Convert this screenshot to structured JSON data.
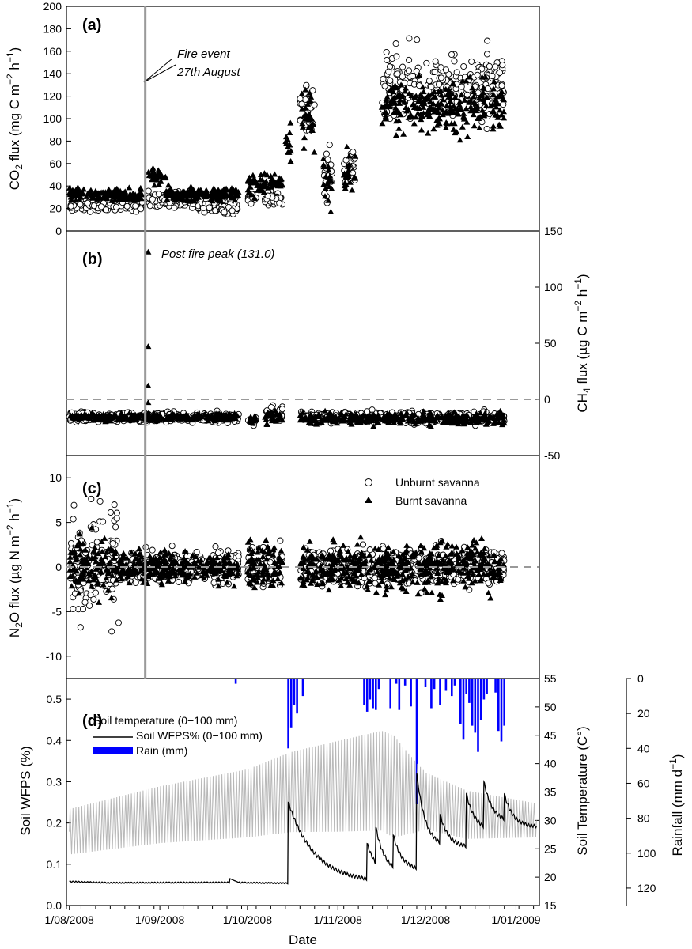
{
  "chart_data": [
    {
      "panel": "(a)",
      "type": "scatter",
      "ylabel": "CO2 flux (mg C m−2 h−1)",
      "ylim": [
        0,
        200
      ],
      "yticks": [
        0,
        20,
        40,
        60,
        80,
        100,
        120,
        140,
        160,
        180,
        200
      ],
      "annotation": [
        "Fire event",
        "27th August"
      ],
      "series": [
        {
          "name": "Unburnt savanna",
          "marker": "open-circle",
          "segments": [
            {
              "x": [
                "2008-08-01",
                "2008-08-26"
              ],
              "center": 23,
              "spread": 5
            },
            {
              "x": [
                "2008-08-28",
                "2008-09-14"
              ],
              "center": 28,
              "spread": 6
            },
            {
              "x": [
                "2008-09-14",
                "2008-09-28"
              ],
              "center": 22,
              "spread": 6
            },
            {
              "x": [
                "2008-10-01",
                "2008-10-04"
              ],
              "center": 30,
              "spread": 4
            },
            {
              "x": [
                "2008-10-07",
                "2008-10-13"
              ],
              "center": 29,
              "spread": 5
            },
            {
              "x": [
                "2008-10-19",
                "2008-10-24"
              ],
              "center": 105,
              "spread": 20
            },
            {
              "x": [
                "2008-10-27",
                "2008-10-30"
              ],
              "center": 55,
              "spread": 20
            },
            {
              "x": [
                "2008-11-03",
                "2008-11-07"
              ],
              "center": 55,
              "spread": 18
            },
            {
              "x": [
                "2008-11-16",
                "2008-11-29"
              ],
              "center": 132,
              "spread": 26
            },
            {
              "x": [
                "2008-12-01",
                "2008-12-12"
              ],
              "center": 128,
              "spread": 22
            },
            {
              "x": [
                "2008-12-13",
                "2008-12-28"
              ],
              "center": 130,
              "spread": 25
            }
          ]
        },
        {
          "name": "Burnt savanna",
          "marker": "filled-triangle",
          "segments": [
            {
              "x": [
                "2008-08-01",
                "2008-08-26"
              ],
              "center": 32,
              "spread": 5
            },
            {
              "x": [
                "2008-08-28",
                "2008-09-03"
              ],
              "center": 48,
              "spread": 6
            },
            {
              "x": [
                "2008-09-03",
                "2008-09-28"
              ],
              "center": 32,
              "spread": 6
            },
            {
              "x": [
                "2008-10-01",
                "2008-10-13"
              ],
              "center": 42,
              "spread": 8
            },
            {
              "x": [
                "2008-10-14",
                "2008-10-16"
              ],
              "center": 80,
              "spread": 30
            },
            {
              "x": [
                "2008-10-19",
                "2008-10-24"
              ],
              "center": 100,
              "spread": 22
            },
            {
              "x": [
                "2008-10-27",
                "2008-10-30"
              ],
              "center": 45,
              "spread": 20
            },
            {
              "x": [
                "2008-11-03",
                "2008-11-07"
              ],
              "center": 50,
              "spread": 18
            },
            {
              "x": [
                "2008-11-16",
                "2008-12-28"
              ],
              "center": 110,
              "spread": 20
            }
          ]
        }
      ]
    },
    {
      "panel": "(b)",
      "type": "scatter",
      "ylabel": "CH4 flux (µg C m−2 h−1)",
      "ylim": [
        -50,
        150
      ],
      "yticks": [
        -50,
        0,
        50,
        100,
        150
      ],
      "reference_line": 0,
      "annotation": "Post fire peak (131.0)",
      "peak_points": [
        {
          "x": "2008-08-28",
          "y": 131.0
        },
        {
          "x": "2008-08-28",
          "y": 47
        },
        {
          "x": "2008-08-28",
          "y": 12
        },
        {
          "x": "2008-08-28",
          "y": -3
        }
      ],
      "series": [
        {
          "name": "Unburnt savanna",
          "marker": "open-circle",
          "segments": [
            {
              "x": [
                "2008-08-01",
                "2008-09-28"
              ],
              "center": -16,
              "spread": 4
            },
            {
              "x": [
                "2008-10-01",
                "2008-10-04"
              ],
              "center": -19,
              "spread": 3
            },
            {
              "x": [
                "2008-10-07",
                "2008-10-13"
              ],
              "center": -12,
              "spread": 6
            },
            {
              "x": [
                "2008-10-19",
                "2008-12-28"
              ],
              "center": -16,
              "spread": 5
            }
          ]
        },
        {
          "name": "Burnt savanna",
          "marker": "filled-triangle",
          "segments": [
            {
              "x": [
                "2008-08-01",
                "2008-09-28"
              ],
              "center": -16,
              "spread": 3
            },
            {
              "x": [
                "2008-10-01",
                "2008-10-04"
              ],
              "center": -18,
              "spread": 3
            },
            {
              "x": [
                "2008-10-07",
                "2008-10-13"
              ],
              "center": -15,
              "spread": 6
            },
            {
              "x": [
                "2008-10-19",
                "2008-12-28"
              ],
              "center": -17,
              "spread": 5
            }
          ]
        }
      ]
    },
    {
      "panel": "(c)",
      "type": "scatter",
      "ylabel": "N2O flux (µg N m−2 h−1)",
      "ylim": [
        -12.5,
        12.5
      ],
      "yticks": [
        -10,
        -5,
        0,
        5,
        10
      ],
      "reference_line": 0,
      "legend": {
        "position": "top-right",
        "entries": [
          "Unburnt savanna",
          "Burnt savanna"
        ]
      },
      "series": [
        {
          "name": "Unburnt savanna",
          "marker": "open-circle",
          "segments": [
            {
              "x": [
                "2008-08-01",
                "2008-08-18"
              ],
              "center": 0,
              "spread": 6
            },
            {
              "x": [
                "2008-08-18",
                "2008-09-28"
              ],
              "center": 0,
              "spread": 1.5
            },
            {
              "x": [
                "2008-10-01",
                "2008-10-13"
              ],
              "center": 0,
              "spread": 2
            },
            {
              "x": [
                "2008-10-19",
                "2008-12-28"
              ],
              "center": 0,
              "spread": 1.8
            }
          ]
        },
        {
          "name": "Burnt savanna",
          "marker": "filled-triangle",
          "segments": [
            {
              "x": [
                "2008-08-01",
                "2008-08-18"
              ],
              "center": 0,
              "spread": 3
            },
            {
              "x": [
                "2008-08-18",
                "2008-09-28"
              ],
              "center": 0,
              "spread": 1.5
            },
            {
              "x": [
                "2008-10-01",
                "2008-10-13"
              ],
              "center": 0,
              "spread": 2.5
            },
            {
              "x": [
                "2008-10-19",
                "2008-12-28"
              ],
              "center": 0,
              "spread": 2.2
            }
          ]
        }
      ]
    },
    {
      "panel": "(d)",
      "type": "line",
      "xlabel": "Date",
      "ylabel_left": "Soil WFPS (%)",
      "ylabel_right1": "Soil Temperature (C°)",
      "ylabel_right2": "Rainfall (mm d−1)",
      "ylim_left": [
        0,
        0.55
      ],
      "yticks_left": [
        0.0,
        0.1,
        0.2,
        0.3,
        0.4,
        0.5
      ],
      "ylim_right1": [
        15,
        55
      ],
      "yticks_right1": [
        15,
        20,
        25,
        30,
        35,
        40,
        45,
        50,
        55
      ],
      "ylim_right2": [
        0,
        130
      ],
      "yticks_right2": [
        0,
        20,
        40,
        60,
        80,
        100,
        120
      ],
      "legend": {
        "position": "top-left",
        "entries": [
          "Soil temperature (0−100 mm)",
          "Soil WFPS% (0−100 mm)",
          "Rain (mm)"
        ]
      },
      "xticks": [
        "1/08/2008",
        "1/09/2008",
        "1/10/2008",
        "1/11/2008",
        "1/12/2008",
        "1/01/2009"
      ],
      "x_range": [
        "2008-07-31",
        "2009-01-09"
      ],
      "soil_temperature": {
        "name": "Soil temperature (0−100 mm)",
        "mean_knots": [
          [
            "2008-08-01",
            28
          ],
          [
            "2008-09-01",
            31
          ],
          [
            "2008-10-01",
            33
          ],
          [
            "2008-10-16",
            35
          ],
          [
            "2008-11-01",
            36
          ],
          [
            "2008-11-16",
            37
          ],
          [
            "2008-11-28",
            34
          ],
          [
            "2008-12-15",
            31
          ],
          [
            "2009-01-08",
            30
          ]
        ],
        "amp_knots": [
          [
            "2008-08-01",
            4
          ],
          [
            "2008-09-01",
            5
          ],
          [
            "2008-10-01",
            6
          ],
          [
            "2008-10-15",
            7
          ],
          [
            "2008-11-01",
            8
          ],
          [
            "2008-11-20",
            9
          ],
          [
            "2008-12-01",
            5
          ],
          [
            "2008-12-20",
            4
          ],
          [
            "2009-01-08",
            3
          ]
        ]
      },
      "soil_wfps": {
        "name": "Soil WFPS% (0−100 mm)",
        "baseline_knots": [
          [
            "2008-08-01",
            0.058
          ],
          [
            "2008-08-15",
            0.055
          ],
          [
            "2008-09-24",
            0.056
          ],
          [
            "2008-10-15",
            0.054
          ]
        ],
        "bumps": [
          {
            "x": "2008-09-25",
            "y": 0.065
          }
        ],
        "events": [
          {
            "x": "2008-10-15",
            "peak": 0.25,
            "decay_days": 9,
            "floor": 0.055
          },
          {
            "x": "2008-11-11",
            "peak": 0.15,
            "decay_days": 4,
            "floor": 0.06
          },
          {
            "x": "2008-11-14",
            "peak": 0.19,
            "decay_days": 3,
            "floor": 0.08
          },
          {
            "x": "2008-11-20",
            "peak": 0.17,
            "decay_days": 3,
            "floor": 0.085
          },
          {
            "x": "2008-11-28",
            "peak": 0.32,
            "decay_days": 3,
            "floor": 0.14
          },
          {
            "x": "2008-12-06",
            "peak": 0.22,
            "decay_days": 3,
            "floor": 0.14
          },
          {
            "x": "2008-12-15",
            "peak": 0.27,
            "decay_days": 3,
            "floor": 0.18
          },
          {
            "x": "2008-12-21",
            "peak": 0.3,
            "decay_days": 3,
            "floor": 0.2
          },
          {
            "x": "2008-12-28",
            "peak": 0.27,
            "decay_days": 3,
            "floor": 0.19
          }
        ]
      },
      "rain": {
        "name": "Rain (mm)",
        "color": "#0000ff",
        "bars": [
          {
            "x": "2008-09-27",
            "y": 3
          },
          {
            "x": "2008-10-15",
            "y": 40
          },
          {
            "x": "2008-10-16",
            "y": 28
          },
          {
            "x": "2008-10-17",
            "y": 15
          },
          {
            "x": "2008-10-18",
            "y": 20
          },
          {
            "x": "2008-10-20",
            "y": 10
          },
          {
            "x": "2008-11-10",
            "y": 15
          },
          {
            "x": "2008-11-11",
            "y": 19
          },
          {
            "x": "2008-11-12",
            "y": 12
          },
          {
            "x": "2008-11-13",
            "y": 17
          },
          {
            "x": "2008-11-14",
            "y": 18
          },
          {
            "x": "2008-11-15",
            "y": 6
          },
          {
            "x": "2008-11-19",
            "y": 17
          },
          {
            "x": "2008-11-21",
            "y": 3
          },
          {
            "x": "2008-11-22",
            "y": 18
          },
          {
            "x": "2008-11-24",
            "y": 4
          },
          {
            "x": "2008-11-26",
            "y": 16
          },
          {
            "x": "2008-11-28",
            "y": 72
          },
          {
            "x": "2008-12-01",
            "y": 5
          },
          {
            "x": "2008-12-03",
            "y": 17
          },
          {
            "x": "2008-12-04",
            "y": 6
          },
          {
            "x": "2008-12-06",
            "y": 15
          },
          {
            "x": "2008-12-08",
            "y": 7
          },
          {
            "x": "2008-12-10",
            "y": 10
          },
          {
            "x": "2008-12-11",
            "y": 4
          },
          {
            "x": "2008-12-13",
            "y": 26
          },
          {
            "x": "2008-12-14",
            "y": 35
          },
          {
            "x": "2008-12-15",
            "y": 9
          },
          {
            "x": "2008-12-16",
            "y": 14
          },
          {
            "x": "2008-12-17",
            "y": 27
          },
          {
            "x": "2008-12-18",
            "y": 31
          },
          {
            "x": "2008-12-19",
            "y": 42
          },
          {
            "x": "2008-12-20",
            "y": 24
          },
          {
            "x": "2008-12-21",
            "y": 12
          },
          {
            "x": "2008-12-22",
            "y": 9
          },
          {
            "x": "2008-12-25",
            "y": 8
          },
          {
            "x": "2008-12-26",
            "y": 30
          },
          {
            "x": "2008-12-27",
            "y": 36
          },
          {
            "x": "2008-12-28",
            "y": 27
          }
        ]
      }
    }
  ]
}
